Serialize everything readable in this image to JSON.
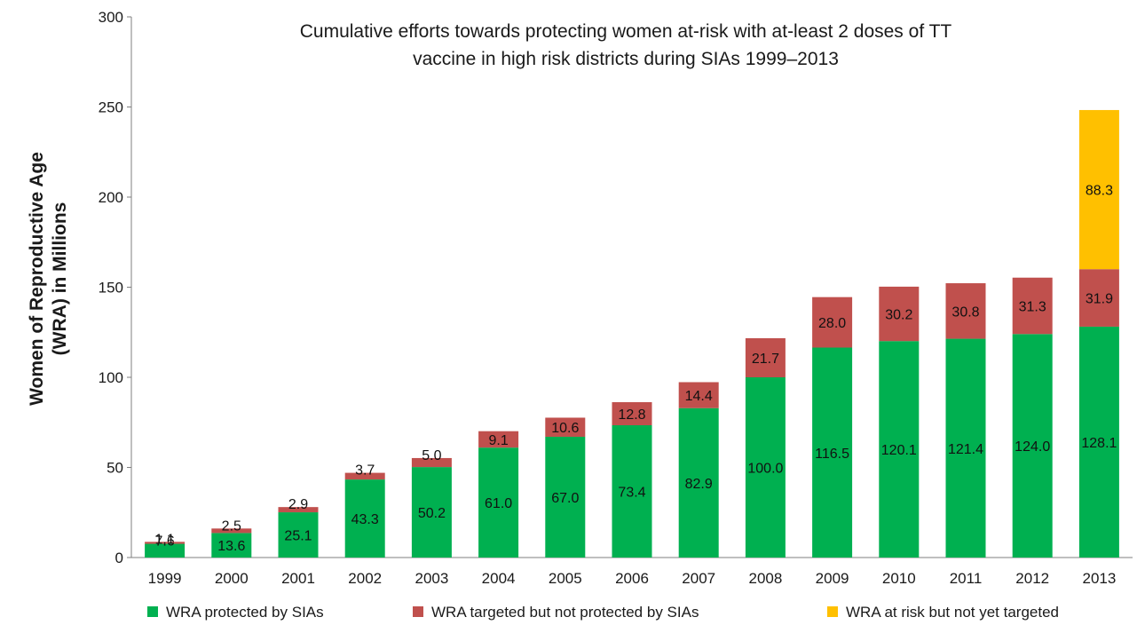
{
  "chart_data": {
    "type": "bar",
    "stacked": true,
    "title_line1": "Cumulative efforts towards protecting women at-risk with at-least 2 doses of TT",
    "title_line2": "vaccine in high risk districts during SIAs 1999–2013",
    "ylabel_line1": "Women of  Reproductive Age",
    "ylabel_line2": "(WRA) in Millions",
    "xlabel": "",
    "ylim": [
      0,
      300
    ],
    "yticks": [
      0,
      50,
      100,
      150,
      200,
      250,
      300
    ],
    "grid": false,
    "legend_position": "bottom",
    "categories": [
      "1999",
      "2000",
      "2001",
      "2002",
      "2003",
      "2004",
      "2005",
      "2006",
      "2007",
      "2008",
      "2009",
      "2010",
      "2011",
      "2012",
      "2013"
    ],
    "series": [
      {
        "name": "WRA protected by SIAs",
        "color": "#00b050",
        "values": [
          7.6,
          13.6,
          25.1,
          43.3,
          50.2,
          61.0,
          67.0,
          73.4,
          82.9,
          100.0,
          116.5,
          120.1,
          121.4,
          124.0,
          128.1
        ],
        "labels": [
          "7.6",
          "13.6",
          "25.1",
          "43.3",
          "50.2",
          "61.0",
          "67.0",
          "73.4",
          "82.9",
          "100.0",
          "116.5",
          "120.1",
          "121.4",
          "124.0",
          "128.1"
        ]
      },
      {
        "name": "WRA targeted but not protected by SIAs",
        "color": "#c0504d",
        "values": [
          1.1,
          2.5,
          2.9,
          3.7,
          5.0,
          9.1,
          10.6,
          12.8,
          14.4,
          21.7,
          28.0,
          30.2,
          30.8,
          31.3,
          31.9
        ],
        "labels": [
          "1.1",
          "2.5",
          "2.9",
          "3.7",
          "5.0",
          "9.1",
          "10.6",
          "12.8",
          "14.4",
          "21.7",
          "28.0",
          "30.2",
          "30.8",
          "31.3",
          "31.9"
        ]
      },
      {
        "name": "WRA at risk but not yet targeted",
        "color": "#ffc000",
        "values": [
          0,
          0,
          0,
          0,
          0,
          0,
          0,
          0,
          0,
          0,
          0,
          0,
          0,
          0,
          88.3
        ],
        "labels": [
          "",
          "",
          "",
          "",
          "",
          "",
          "",
          "",
          "",
          "",
          "",
          "",
          "",
          "",
          "88.3"
        ]
      }
    ]
  }
}
